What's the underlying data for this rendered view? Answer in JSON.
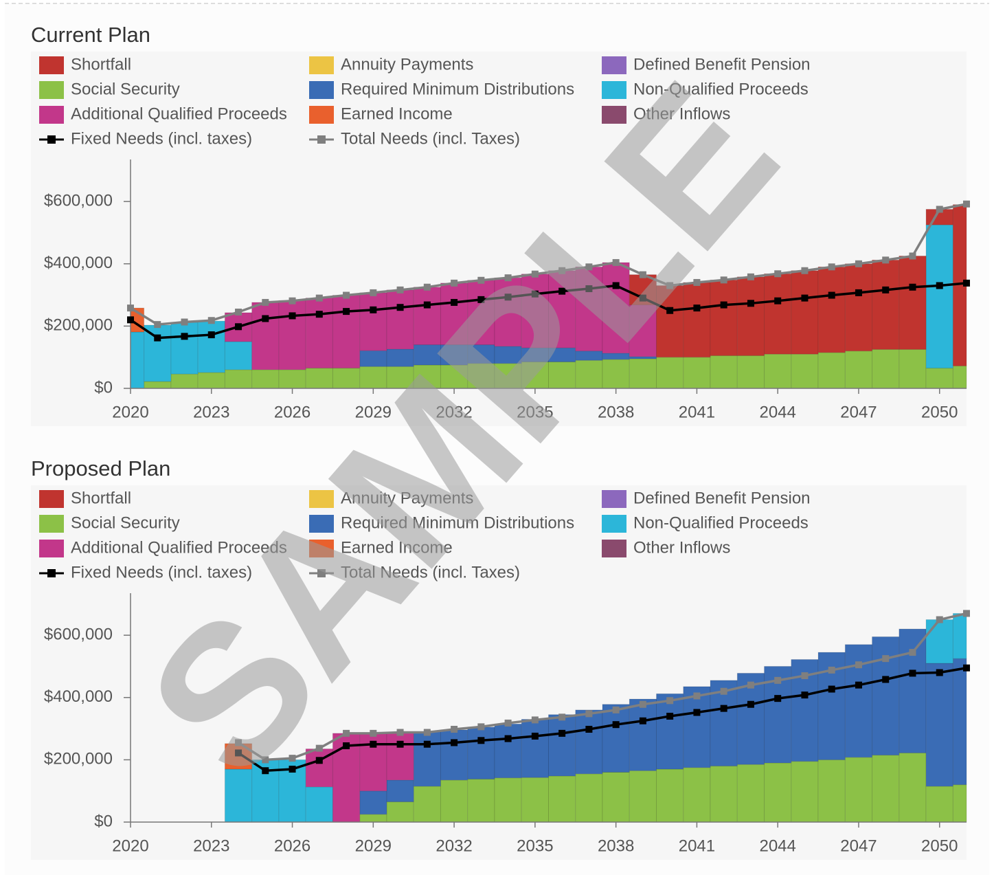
{
  "chart_data": [
    {
      "type": "bar",
      "title": "Current Plan",
      "x": [
        2020,
        2021,
        2022,
        2023,
        2024,
        2025,
        2026,
        2027,
        2028,
        2029,
        2030,
        2031,
        2032,
        2033,
        2034,
        2035,
        2036,
        2037,
        2038,
        2039,
        2040,
        2041,
        2042,
        2043,
        2044,
        2045,
        2046,
        2047,
        2048,
        2049,
        2050,
        2051
      ],
      "xlim": [
        2020,
        2051
      ],
      "xticks": [
        2020,
        2023,
        2026,
        2029,
        2032,
        2035,
        2038,
        2041,
        2044,
        2047,
        2050
      ],
      "ylim": [
        0,
        735000
      ],
      "yticks": [
        {
          "value": 0,
          "label": "$0"
        },
        {
          "value": 200000,
          "label": "$200,000"
        },
        {
          "value": 400000,
          "label": "$400,000"
        },
        {
          "value": 600000,
          "label": "$600,000"
        }
      ],
      "stacked": true,
      "series": [
        {
          "name": "Shortfall",
          "color": "#c0342f",
          "values": [
            0,
            0,
            0,
            0,
            0,
            0,
            0,
            0,
            0,
            0,
            0,
            0,
            0,
            0,
            0,
            0,
            0,
            0,
            0,
            97000,
            230000,
            240000,
            243000,
            253000,
            258000,
            268000,
            275000,
            280000,
            287000,
            300000,
            50000,
            518000
          ]
        },
        {
          "name": "Annuity Payments",
          "color": "#ecc444",
          "values": [
            0,
            0,
            0,
            0,
            0,
            0,
            0,
            0,
            0,
            0,
            0,
            0,
            0,
            0,
            0,
            0,
            0,
            0,
            0,
            0,
            0,
            0,
            0,
            0,
            0,
            0,
            0,
            0,
            0,
            0,
            0,
            0
          ]
        },
        {
          "name": "Defined Benefit Pension",
          "color": "#8c68bd",
          "values": [
            0,
            0,
            0,
            0,
            0,
            0,
            0,
            0,
            0,
            0,
            0,
            0,
            0,
            0,
            0,
            0,
            0,
            0,
            0,
            0,
            0,
            0,
            0,
            0,
            0,
            0,
            0,
            0,
            0,
            0,
            0,
            0
          ]
        },
        {
          "name": "Social Security",
          "color": "#8cc147",
          "values": [
            0,
            22000,
            46000,
            51000,
            60000,
            60000,
            60000,
            65000,
            65000,
            70000,
            70000,
            75000,
            75000,
            80000,
            80000,
            85000,
            85000,
            90000,
            93000,
            95000,
            100000,
            100000,
            105000,
            105000,
            110000,
            110000,
            115000,
            120000,
            125000,
            125000,
            65000,
            72000
          ]
        },
        {
          "name": "Required Minimum Distributions",
          "color": "#3a6cb5",
          "values": [
            0,
            0,
            0,
            0,
            0,
            0,
            0,
            0,
            0,
            51000,
            56000,
            65000,
            65000,
            60000,
            55000,
            45000,
            45000,
            30000,
            20000,
            7000,
            0,
            0,
            0,
            0,
            0,
            0,
            0,
            0,
            0,
            0,
            0,
            0
          ]
        },
        {
          "name": "Non-Qualified Proceeds",
          "color": "#2cb6d9",
          "values": [
            181000,
            181000,
            166000,
            165000,
            90000,
            0,
            0,
            0,
            0,
            0,
            0,
            0,
            0,
            0,
            0,
            0,
            0,
            0,
            0,
            0,
            0,
            0,
            0,
            0,
            0,
            0,
            0,
            0,
            0,
            0,
            460000,
            0
          ]
        },
        {
          "name": "Additional Qualified Proceeds",
          "color": "#c2378a",
          "values": [
            0,
            0,
            0,
            0,
            93000,
            216000,
            222000,
            225000,
            234000,
            186000,
            190000,
            185000,
            198000,
            207000,
            220000,
            237000,
            248000,
            270000,
            291000,
            166000,
            0,
            0,
            0,
            0,
            0,
            0,
            0,
            0,
            0,
            0,
            0,
            0
          ]
        },
        {
          "name": "Earned Income",
          "color": "#e9602d",
          "values": [
            77000,
            0,
            0,
            0,
            0,
            0,
            0,
            0,
            0,
            0,
            0,
            0,
            0,
            0,
            0,
            0,
            0,
            0,
            0,
            0,
            0,
            0,
            0,
            0,
            0,
            0,
            0,
            0,
            0,
            0,
            0,
            0
          ]
        },
        {
          "name": "Other Inflows",
          "color": "#8a4a6d",
          "values": [
            0,
            0,
            0,
            0,
            0,
            0,
            0,
            0,
            0,
            0,
            0,
            0,
            0,
            0,
            0,
            0,
            0,
            0,
            0,
            0,
            0,
            0,
            0,
            0,
            0,
            0,
            0,
            0,
            0,
            0,
            0,
            0
          ]
        },
        {
          "name": "Fixed Needs (incl. taxes)",
          "color": "#000000",
          "type": "line",
          "values": [
            220000,
            162000,
            167000,
            172000,
            198000,
            224000,
            233000,
            238000,
            247000,
            252000,
            260000,
            268000,
            276000,
            285000,
            293000,
            303000,
            312000,
            320000,
            330000,
            290000,
            250000,
            258000,
            268000,
            273000,
            281000,
            290000,
            299000,
            307000,
            316000,
            325000,
            330000,
            338000
          ]
        },
        {
          "name": "Total Needs (incl. Taxes)",
          "color": "#7f7f7f",
          "type": "line",
          "values": [
            258000,
            205000,
            213000,
            218000,
            245000,
            276000,
            281000,
            290000,
            299000,
            307000,
            316000,
            325000,
            338000,
            347000,
            355000,
            367000,
            378000,
            390000,
            404000,
            365000,
            330000,
            340000,
            348000,
            358000,
            368000,
            378000,
            390000,
            400000,
            412000,
            425000,
            575000,
            592000
          ]
        }
      ]
    },
    {
      "type": "bar",
      "title": "Proposed Plan",
      "x": [
        2020,
        2021,
        2022,
        2023,
        2024,
        2025,
        2026,
        2027,
        2028,
        2029,
        2030,
        2031,
        2032,
        2033,
        2034,
        2035,
        2036,
        2037,
        2038,
        2039,
        2040,
        2041,
        2042,
        2043,
        2044,
        2045,
        2046,
        2047,
        2048,
        2049,
        2050,
        2051
      ],
      "xlim": [
        2020,
        2051
      ],
      "xticks": [
        2020,
        2023,
        2026,
        2029,
        2032,
        2035,
        2038,
        2041,
        2044,
        2047,
        2050
      ],
      "ylim": [
        0,
        735000
      ],
      "yticks": [
        {
          "value": 0,
          "label": "$0"
        },
        {
          "value": 200000,
          "label": "$200,000"
        },
        {
          "value": 400000,
          "label": "$400,000"
        },
        {
          "value": 600000,
          "label": "$600,000"
        }
      ],
      "stacked": true,
      "series": [
        {
          "name": "Shortfall",
          "color": "#c0342f",
          "values": [
            0,
            0,
            0,
            0,
            0,
            0,
            0,
            0,
            0,
            0,
            0,
            0,
            0,
            0,
            0,
            0,
            0,
            0,
            0,
            0,
            0,
            0,
            0,
            0,
            0,
            0,
            0,
            0,
            0,
            0,
            0,
            0
          ]
        },
        {
          "name": "Annuity Payments",
          "color": "#ecc444",
          "values": [
            0,
            0,
            0,
            0,
            0,
            0,
            0,
            0,
            0,
            0,
            0,
            0,
            0,
            0,
            0,
            0,
            0,
            0,
            0,
            0,
            0,
            0,
            0,
            0,
            0,
            0,
            0,
            0,
            0,
            0,
            0,
            0
          ]
        },
        {
          "name": "Defined Benefit Pension",
          "color": "#8c68bd",
          "values": [
            0,
            0,
            0,
            0,
            0,
            0,
            0,
            0,
            0,
            0,
            0,
            0,
            0,
            0,
            0,
            0,
            0,
            0,
            0,
            0,
            0,
            0,
            0,
            0,
            0,
            0,
            0,
            0,
            0,
            0,
            0,
            0
          ]
        },
        {
          "name": "Social Security",
          "color": "#8cc147",
          "values": [
            0,
            0,
            0,
            0,
            0,
            0,
            0,
            0,
            0,
            25000,
            65000,
            115000,
            135000,
            138000,
            142000,
            143000,
            148000,
            155000,
            160000,
            165000,
            170000,
            175000,
            180000,
            185000,
            190000,
            195000,
            200000,
            208000,
            215000,
            222000,
            115000,
            120000
          ]
        },
        {
          "name": "Required Minimum Distributions",
          "color": "#3a6cb5",
          "values": [
            0,
            0,
            0,
            0,
            0,
            0,
            0,
            0,
            0,
            75000,
            70000,
            175000,
            161000,
            167000,
            173000,
            187000,
            197000,
            205000,
            218000,
            230000,
            242000,
            260000,
            275000,
            293000,
            310000,
            327000,
            345000,
            362000,
            380000,
            398000,
            395000,
            405000
          ]
        },
        {
          "name": "Non-Qualified Proceeds",
          "color": "#2cb6d9",
          "values": [
            0,
            0,
            0,
            0,
            170000,
            200000,
            200000,
            113000,
            0,
            0,
            0,
            0,
            0,
            0,
            0,
            0,
            0,
            0,
            0,
            0,
            0,
            0,
            0,
            0,
            0,
            0,
            0,
            0,
            0,
            0,
            140000,
            145000
          ]
        },
        {
          "name": "Additional Qualified Proceeds",
          "color": "#c2378a",
          "values": [
            0,
            0,
            0,
            0,
            0,
            0,
            0,
            122000,
            285000,
            185000,
            152000,
            0,
            0,
            0,
            0,
            0,
            0,
            0,
            0,
            0,
            0,
            0,
            0,
            0,
            0,
            0,
            0,
            0,
            0,
            0,
            0,
            0
          ]
        },
        {
          "name": "Earned Income",
          "color": "#e9602d",
          "values": [
            0,
            0,
            0,
            0,
            82000,
            0,
            0,
            0,
            0,
            0,
            0,
            0,
            0,
            0,
            0,
            0,
            0,
            0,
            0,
            0,
            0,
            0,
            0,
            0,
            0,
            0,
            0,
            0,
            0,
            0,
            0,
            0
          ]
        },
        {
          "name": "Other Inflows",
          "color": "#8a4a6d",
          "values": [
            0,
            0,
            0,
            0,
            0,
            0,
            0,
            0,
            0,
            0,
            0,
            0,
            0,
            0,
            0,
            0,
            0,
            0,
            0,
            0,
            0,
            0,
            0,
            0,
            0,
            0,
            0,
            0,
            0,
            0,
            0,
            0
          ]
        },
        {
          "name": "Fixed Needs (incl. taxes)",
          "color": "#000000",
          "type": "line",
          "values": [
            null,
            null,
            null,
            null,
            222000,
            165000,
            170000,
            198000,
            245000,
            250000,
            250000,
            250000,
            255000,
            262000,
            268000,
            276000,
            285000,
            298000,
            313000,
            325000,
            340000,
            352000,
            365000,
            378000,
            397000,
            408000,
            427000,
            440000,
            458000,
            478000,
            480000,
            495000
          ]
        },
        {
          "name": "Total Needs (incl. Taxes)",
          "color": "#7f7f7f",
          "type": "line",
          "values": [
            null,
            null,
            null,
            null,
            255000,
            200000,
            205000,
            237000,
            285000,
            285000,
            288000,
            288000,
            298000,
            306000,
            318000,
            328000,
            337000,
            348000,
            360000,
            378000,
            390000,
            405000,
            420000,
            440000,
            455000,
            470000,
            488000,
            505000,
            525000,
            545000,
            650000,
            670000
          ]
        }
      ]
    }
  ],
  "watermark": "SAMPLE"
}
